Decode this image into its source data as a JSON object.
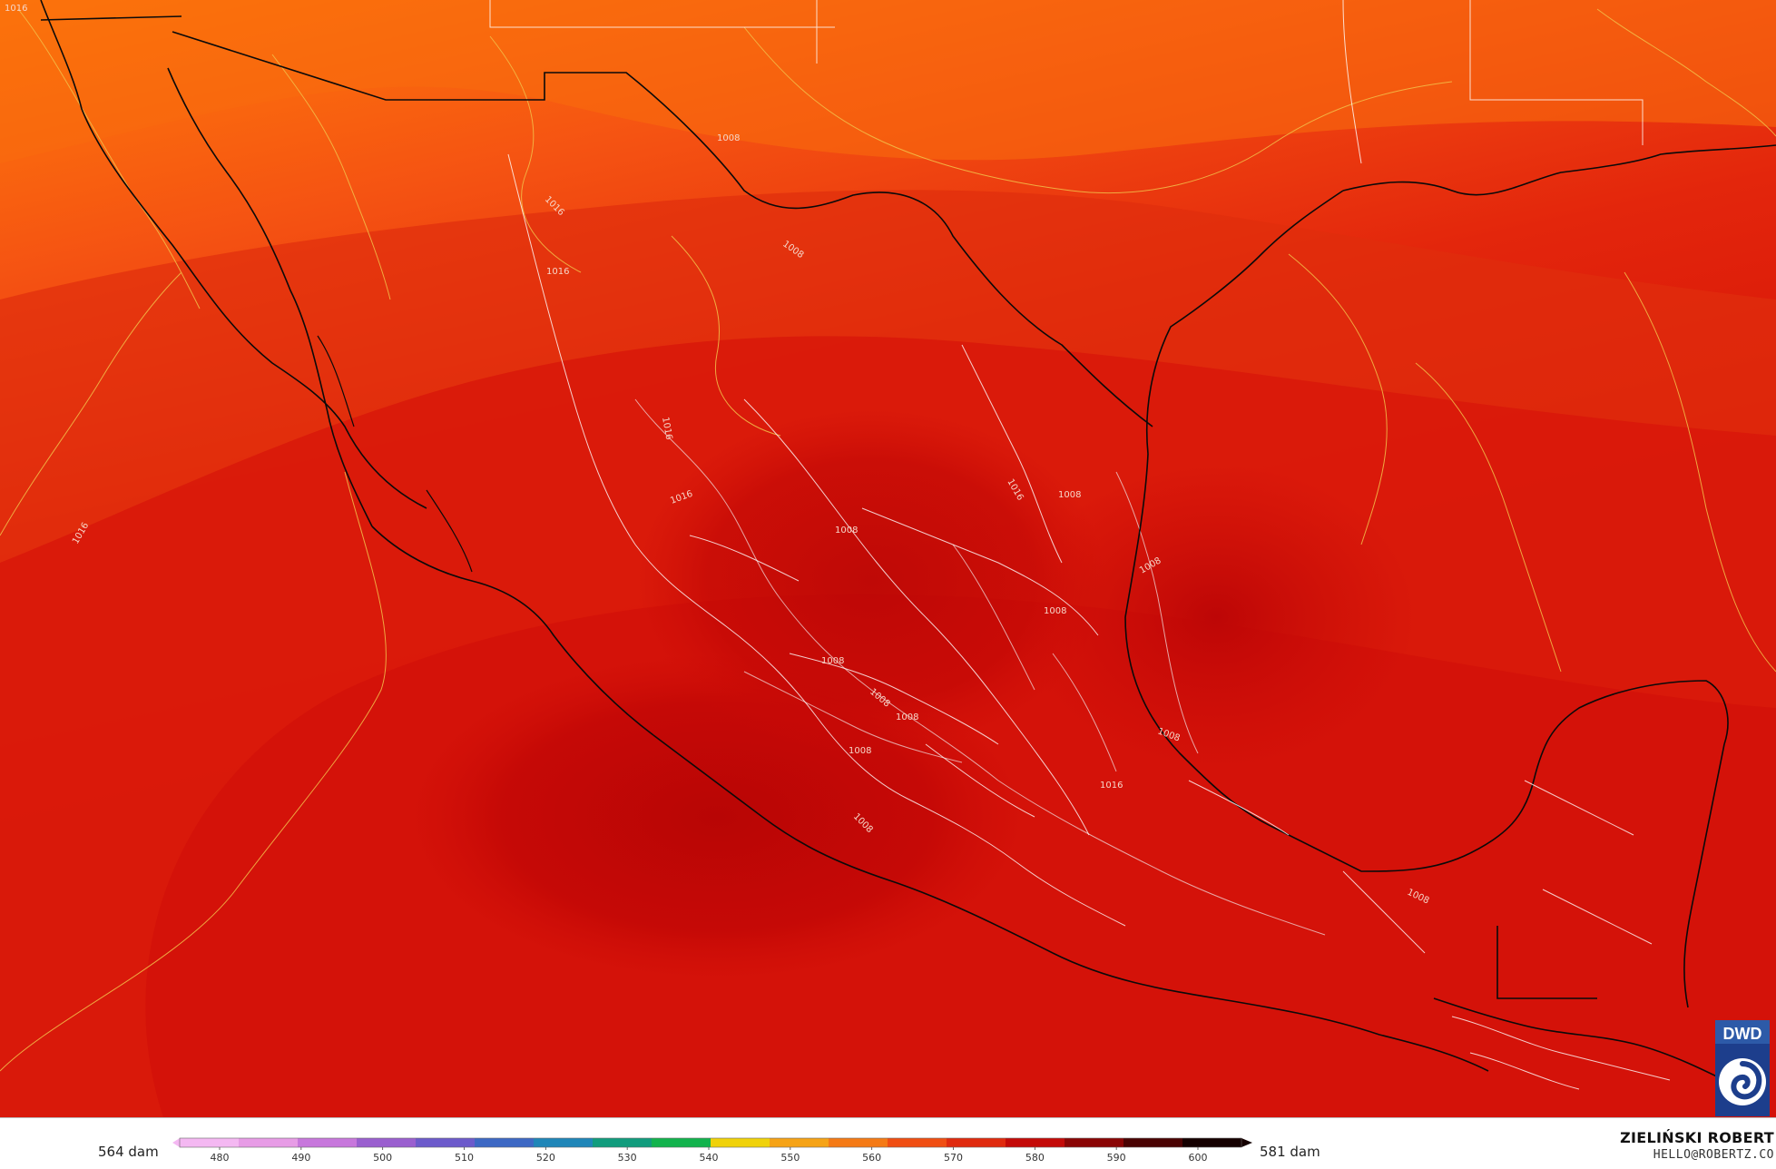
{
  "map": {
    "contour_labels": [
      "1016",
      "1016",
      "1016",
      "1016",
      "1016",
      "1008",
      "1008",
      "1016",
      "1016",
      "1008",
      "1008",
      "1008",
      "1008",
      "1008",
      "1008",
      "1008",
      "1008",
      "1008",
      "1016",
      "1008",
      "1008"
    ]
  },
  "legend": {
    "min_label": "564 dam",
    "max_label": "581 dam",
    "ticks": [
      "480",
      "490",
      "500",
      "510",
      "520",
      "530",
      "540",
      "550",
      "560",
      "570",
      "580",
      "590",
      "600"
    ],
    "colors": [
      "#f4b8f2",
      "#e79ce6",
      "#c777dc",
      "#9a5fcf",
      "#6c5acb",
      "#3d68c4",
      "#1f86b8",
      "#119c7d",
      "#12b34d",
      "#f0d20a",
      "#f6a316",
      "#f57a15",
      "#f04e12",
      "#e02a0e",
      "#c40a08",
      "#8a0505",
      "#4a0303",
      "#150000"
    ]
  },
  "credits": {
    "author": "ZIELIŃSKI ROBERT",
    "email": "HELLO@ROBERTZ.CO",
    "logo_text": "DWD"
  }
}
